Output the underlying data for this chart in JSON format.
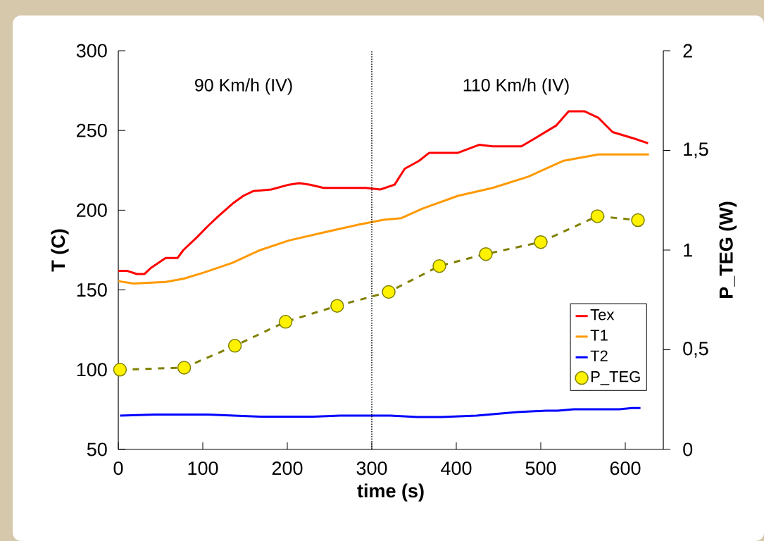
{
  "chart_data": {
    "type": "line",
    "xlabel": "time (s)",
    "ylabel": "T (C)",
    "y2label": "P_TEG (W)",
    "annotations": [
      "90 Km/h (IV)",
      "110 Km/h (IV)"
    ],
    "xlim": [
      0,
      645
    ],
    "xticks": [
      0,
      100,
      200,
      300,
      400,
      500,
      600
    ],
    "ylim": [
      50,
      300
    ],
    "yticks": [
      50,
      100,
      150,
      200,
      250,
      300
    ],
    "y2lim": [
      0,
      2
    ],
    "y2ticks": [
      {
        "value": 0,
        "label": "0"
      },
      {
        "value": 0.5,
        "label": "0,5"
      },
      {
        "value": 1,
        "label": "1"
      },
      {
        "value": 1.5,
        "label": "1,5"
      },
      {
        "value": 2,
        "label": "2"
      }
    ],
    "grid": false,
    "legend": "bottom right",
    "ref_lines": [
      {
        "axis": "x",
        "value": 300,
        "color": "#000000",
        "line_style": "dotted"
      }
    ],
    "series": [
      {
        "name": "Tex",
        "color": "#ff0000",
        "marker": "none",
        "line_style": "solid",
        "x": [
          0,
          10,
          22,
          31,
          39,
          56,
          70,
          77,
          93,
          106,
          118,
          135,
          148,
          160,
          181,
          202,
          214,
          227,
          243,
          293,
          310,
          327,
          339,
          356,
          368,
          402,
          427,
          443,
          477,
          493,
          518,
          533,
          552,
          568,
          585,
          610,
          627
        ],
        "values": [
          162,
          162,
          160,
          160,
          164,
          170,
          170,
          175,
          183,
          190,
          196,
          204,
          209,
          212,
          213,
          216,
          217,
          216,
          214,
          214,
          213,
          216,
          226,
          231,
          236,
          236,
          241,
          240,
          240,
          245,
          253,
          262,
          262,
          258,
          249,
          245,
          242
        ]
      },
      {
        "name": "T1",
        "color": "#ff9900",
        "marker": "none",
        "line_style": "solid",
        "x": [
          0,
          18,
          56,
          77,
          102,
          135,
          168,
          202,
          243,
          285,
          314,
          335,
          360,
          402,
          443,
          485,
          527,
          568,
          628
        ],
        "values": [
          155.5,
          154,
          155,
          157,
          161,
          167,
          175,
          181,
          186,
          191,
          194,
          195,
          201,
          209,
          214,
          221,
          231,
          235,
          235
        ]
      },
      {
        "name": "T2",
        "color": "#0000ff",
        "marker": "none",
        "line_style": "solid",
        "x": [
          2,
          43,
          106,
          168,
          231,
          262,
          322,
          354,
          383,
          424,
          472,
          506,
          520,
          539,
          593,
          608,
          618
        ],
        "values": [
          71.2,
          71.9,
          71.9,
          70.5,
          70.5,
          71.2,
          71.2,
          70.3,
          70.3,
          71.2,
          73.4,
          74.3,
          74.3,
          75.2,
          75.2,
          75.9,
          75.9
        ]
      },
      {
        "name": "P_TEG",
        "color": "#808000",
        "marker": "circle",
        "line_style": "dashed",
        "axis": "y2",
        "x": [
          2,
          78,
          138,
          198,
          259,
          320,
          380,
          435,
          500,
          567,
          615
        ],
        "values": [
          0.4,
          0.41,
          0.52,
          0.64,
          0.72,
          0.79,
          0.92,
          0.98,
          1.04,
          1.17,
          1.15
        ]
      }
    ]
  }
}
